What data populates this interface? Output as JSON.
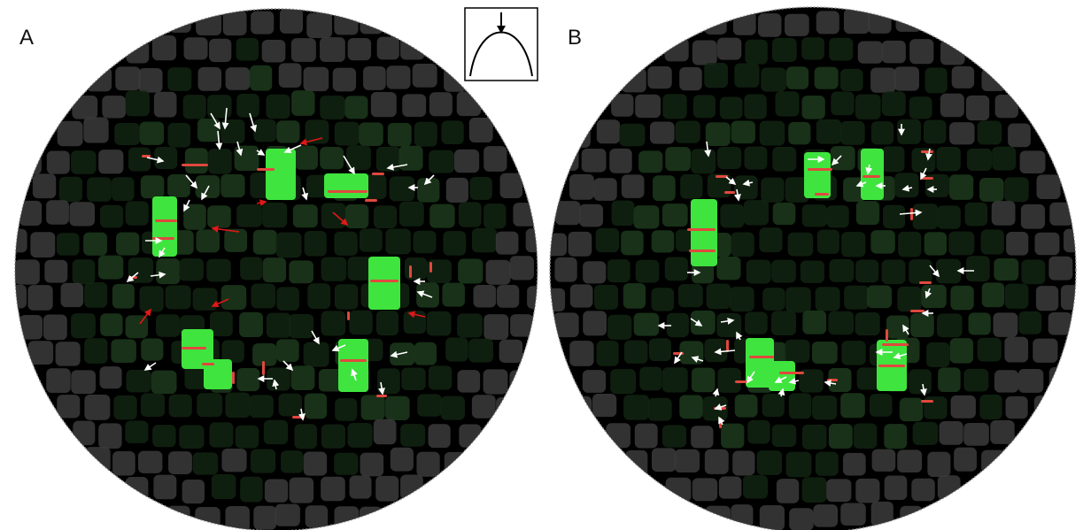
{
  "panels": [
    {
      "label": "A"
    },
    {
      "label": "B"
    }
  ],
  "inset": {
    "icon": "parabola-with-downward-arrow-icon"
  },
  "colors": {
    "background": "#000000",
    "frame_edge": "#9a9a9a",
    "cell_dark": "#122412",
    "cell_mid": "#1c3a1c",
    "cell_grey": "#3b3b3b",
    "cell_bright": "#3fe43f",
    "junction": "#e0483e",
    "arrow_white": "#ffffff",
    "arrow_red": "#e01818"
  }
}
